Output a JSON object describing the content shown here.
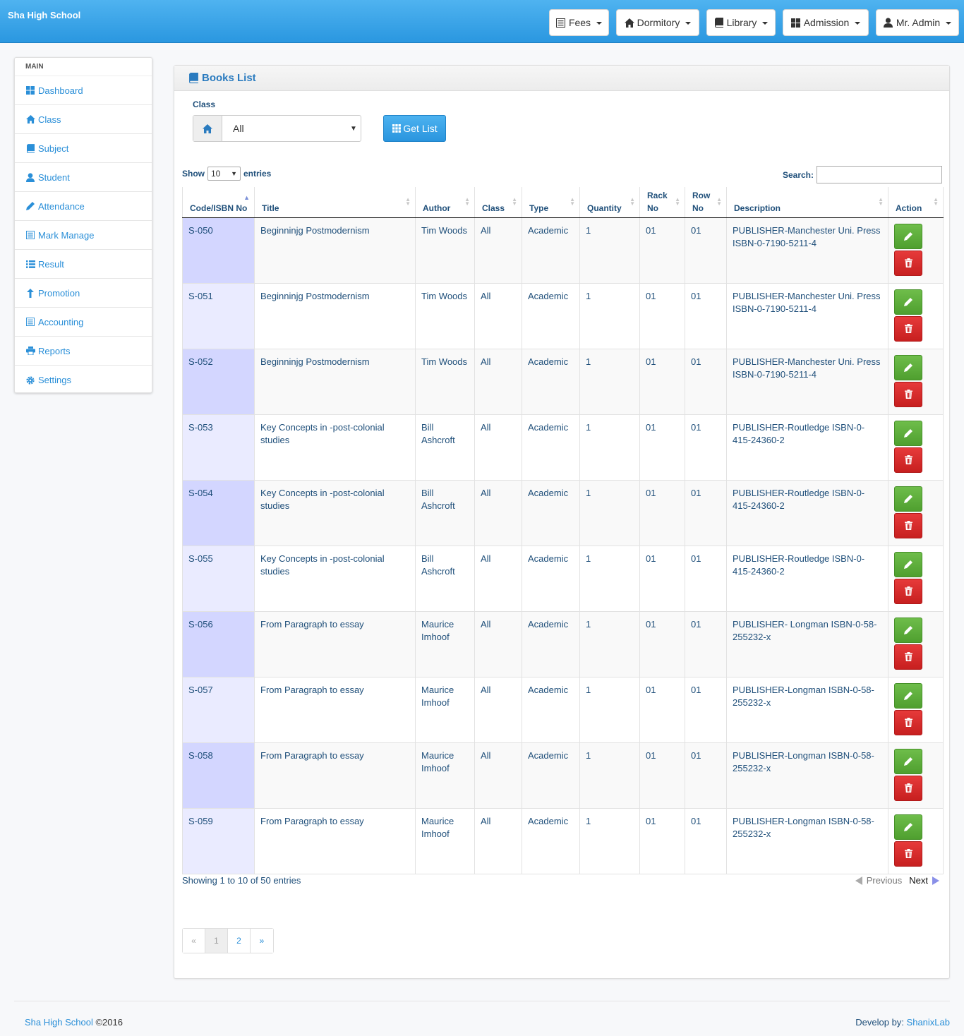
{
  "navbar": {
    "brand": "Sha High School",
    "buttons": [
      {
        "label": "Fees",
        "icon": "list-alt-icon"
      },
      {
        "label": "Dormitory",
        "icon": "home-icon"
      },
      {
        "label": "Library",
        "icon": "book-icon"
      },
      {
        "label": "Admission",
        "icon": "th-large-icon"
      },
      {
        "label": "Mr. Admin",
        "icon": "user-icon"
      }
    ]
  },
  "sidebar": {
    "heading": "MAIN",
    "items": [
      {
        "label": "Dashboard",
        "icon": "th-large-icon"
      },
      {
        "label": "Class",
        "icon": "home-icon"
      },
      {
        "label": "Subject",
        "icon": "book-icon"
      },
      {
        "label": "Student",
        "icon": "user-icon"
      },
      {
        "label": "Attendance",
        "icon": "pencil-icon"
      },
      {
        "label": "Mark Manage",
        "icon": "list-alt-icon"
      },
      {
        "label": "Result",
        "icon": "list-icon"
      },
      {
        "label": "Promotion",
        "icon": "arrow-up-icon"
      },
      {
        "label": "Accounting",
        "icon": "list-alt-icon"
      },
      {
        "label": "Reports",
        "icon": "print-icon"
      },
      {
        "label": "Settings",
        "icon": "cog-icon"
      }
    ]
  },
  "panel": {
    "title": "Books List",
    "class_label": "Class",
    "class_value": "All",
    "get_list_label": "Get List"
  },
  "table_controls": {
    "show_label": "Show",
    "entries_value": "10",
    "entries_label": "entries",
    "search_label": "Search:",
    "search_value": ""
  },
  "table": {
    "headers": [
      "Code/ISBN No",
      "Title",
      "Author",
      "Class",
      "Type",
      "Quantity",
      "Rack No",
      "Row No",
      "Description",
      "Action"
    ],
    "rows": [
      {
        "code": "S-050",
        "title": "Beginninjg Postmodernism",
        "author": "Tim Woods",
        "class": "All",
        "type": "Academic",
        "quantity": "1",
        "rack": "01",
        "row": "01",
        "description": "PUBLISHER-Manchester Uni. Press ISBN-0-7190-5211-4"
      },
      {
        "code": "S-051",
        "title": "Beginninjg Postmodernism",
        "author": "Tim Woods",
        "class": "All",
        "type": "Academic",
        "quantity": "1",
        "rack": "01",
        "row": "01",
        "description": "PUBLISHER-Manchester Uni. Press ISBN-0-7190-5211-4"
      },
      {
        "code": "S-052",
        "title": "Beginninjg Postmodernism",
        "author": "Tim Woods",
        "class": "All",
        "type": "Academic",
        "quantity": "1",
        "rack": "01",
        "row": "01",
        "description": "PUBLISHER-Manchester Uni. Press ISBN-0-7190-5211-4"
      },
      {
        "code": "S-053",
        "title": "Key Concepts in -post-colonial studies",
        "author": "Bill Ashcroft",
        "class": "All",
        "type": "Academic",
        "quantity": "1",
        "rack": "01",
        "row": "01",
        "description": "PUBLISHER-Routledge ISBN-0-415-24360-2"
      },
      {
        "code": "S-054",
        "title": "Key Concepts in -post-colonial studies",
        "author": "Bill Ashcroft",
        "class": "All",
        "type": "Academic",
        "quantity": "1",
        "rack": "01",
        "row": "01",
        "description": "PUBLISHER-Routledge ISBN-0-415-24360-2"
      },
      {
        "code": "S-055",
        "title": "Key Concepts in -post-colonial studies",
        "author": "Bill Ashcroft",
        "class": "All",
        "type": "Academic",
        "quantity": "1",
        "rack": "01",
        "row": "01",
        "description": "PUBLISHER-Routledge ISBN-0-415-24360-2"
      },
      {
        "code": "S-056",
        "title": "From Paragraph to essay",
        "author": "Maurice Imhoof",
        "class": "All",
        "type": "Academic",
        "quantity": "1",
        "rack": "01",
        "row": "01",
        "description": "PUBLISHER- Longman ISBN-0-58-255232-x"
      },
      {
        "code": "S-057",
        "title": "From Paragraph to essay",
        "author": "Maurice Imhoof",
        "class": "All",
        "type": "Academic",
        "quantity": "1",
        "rack": "01",
        "row": "01",
        "description": "PUBLISHER-Longman ISBN-0-58-255232-x"
      },
      {
        "code": "S-058",
        "title": "From Paragraph to essay",
        "author": "Maurice Imhoof",
        "class": "All",
        "type": "Academic",
        "quantity": "1",
        "rack": "01",
        "row": "01",
        "description": "PUBLISHER-Longman ISBN-0-58-255232-x"
      },
      {
        "code": "S-059",
        "title": "From Paragraph to essay",
        "author": "Maurice Imhoof",
        "class": "All",
        "type": "Academic",
        "quantity": "1",
        "rack": "01",
        "row": "01",
        "description": "PUBLISHER-Longman ISBN-0-58-255232-x"
      }
    ]
  },
  "table_footer": {
    "info": "Showing 1 to 10 of 50 entries",
    "previous": "Previous",
    "next": "Next"
  },
  "pagination": [
    "«",
    "1",
    "2",
    "»"
  ],
  "footer": {
    "brand": "Sha High School",
    "copyright": "©2016",
    "develop_label": "Develop by:",
    "developer": "ShanixLab"
  },
  "colors": {
    "navbar": "#2a97e0",
    "link": "#2a8fd8",
    "edit": "#5cae3b",
    "delete": "#d52626"
  }
}
